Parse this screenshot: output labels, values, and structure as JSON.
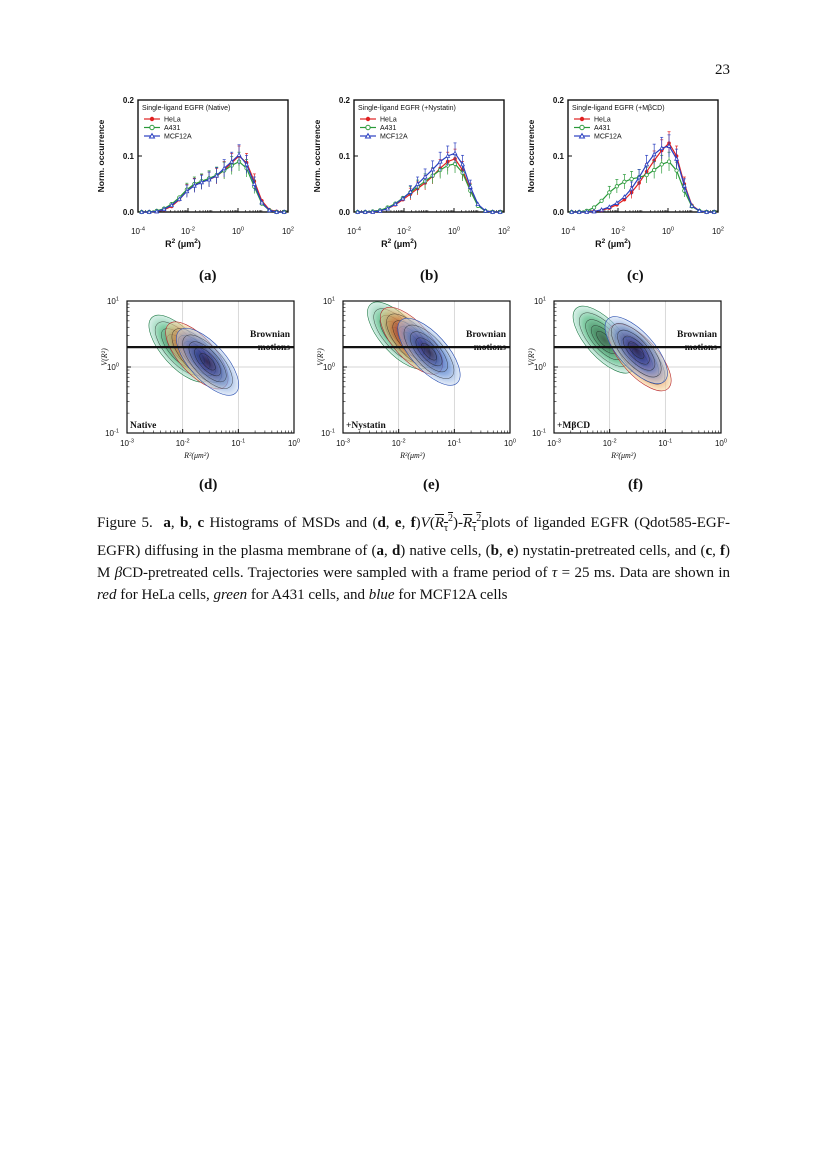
{
  "page_number": "23",
  "panel_labels": [
    "(a)",
    "(b)",
    "(c)",
    "(d)",
    "(e)",
    "(f)"
  ],
  "colors": {
    "HeLa": "#e02020",
    "A431": "#2a9a3a",
    "MCF12A": "#2a3fc0"
  },
  "histograms": [
    {
      "id": "a",
      "title": "Single-ligand EGFR (Native)"
    },
    {
      "id": "b",
      "title": "Single-ligand EGFR (+Nystatin)"
    },
    {
      "id": "c",
      "title": "Single-ligand EGFR (+MβCD)"
    }
  ],
  "histogram_axes": {
    "ylabel": "Norm. occurrence",
    "xlabel_main": "R",
    "xlabel_sup": "2",
    "xlabel_unit": "(μm",
    "xlabel_unit_sup": "2",
    "xlabel_close": ")",
    "yticks": [
      "0.0",
      "0.1",
      "0.2"
    ],
    "xticks": [
      {
        "base": "10",
        "exp": "-4"
      },
      {
        "base": "10",
        "exp": "-2"
      },
      {
        "base": "10",
        "exp": "0"
      },
      {
        "base": "10",
        "exp": "2"
      }
    ]
  },
  "legend": [
    "HeLa",
    "A431",
    "MCF12A"
  ],
  "contours": [
    {
      "id": "d",
      "condition": "Native"
    },
    {
      "id": "e",
      "condition": "+Nystatin"
    },
    {
      "id": "f",
      "condition": "+MβCD"
    }
  ],
  "contour_axes": {
    "ylabel": "V(R²)",
    "xlabel": "R²(μm²)",
    "brownian_line1": "Brownian",
    "brownian_line2": "motions",
    "yticks": [
      {
        "base": "10",
        "exp": "1"
      },
      {
        "base": "10",
        "exp": "0"
      },
      {
        "base": "10",
        "exp": "-1"
      }
    ],
    "xticks": [
      {
        "base": "10",
        "exp": "-3"
      },
      {
        "base": "10",
        "exp": "-2"
      },
      {
        "base": "10",
        "exp": "-1"
      },
      {
        "base": "10",
        "exp": "0"
      }
    ]
  },
  "chart_data": [
    {
      "type": "line",
      "panel": "a",
      "title": "Single-ligand EGFR (Native)",
      "xlabel": "R² (μm²)",
      "ylabel": "Norm. occurrence",
      "xscale": "log",
      "xlim": [
        0.0001,
        100
      ],
      "ylim": [
        0,
        0.2
      ],
      "x": [
        7e-05,
        0.00014,
        0.00028,
        0.00056,
        0.0011,
        0.0022,
        0.0045,
        0.009,
        0.018,
        0.035,
        0.07,
        0.14,
        0.28,
        0.56,
        1.1,
        2.2,
        4.5,
        9,
        18,
        35,
        70
      ],
      "series": [
        {
          "name": "HeLa",
          "values": [
            0,
            0,
            0,
            0.001,
            0.004,
            0.01,
            0.022,
            0.038,
            0.048,
            0.054,
            0.058,
            0.064,
            0.075,
            0.088,
            0.1,
            0.088,
            0.055,
            0.02,
            0.004,
            0.001,
            0
          ]
        },
        {
          "name": "A431",
          "values": [
            0,
            0,
            0,
            0.002,
            0.006,
            0.014,
            0.026,
            0.04,
            0.05,
            0.055,
            0.06,
            0.066,
            0.074,
            0.083,
            0.09,
            0.078,
            0.045,
            0.015,
            0.003,
            0,
            0
          ]
        },
        {
          "name": "MCF12A",
          "values": [
            0,
            0,
            0,
            0.001,
            0.005,
            0.012,
            0.023,
            0.037,
            0.047,
            0.053,
            0.058,
            0.065,
            0.078,
            0.09,
            0.102,
            0.085,
            0.05,
            0.017,
            0.003,
            0,
            0
          ]
        }
      ]
    },
    {
      "type": "line",
      "panel": "b",
      "title": "Single-ligand EGFR (+Nystatin)",
      "xlabel": "R² (μm²)",
      "ylabel": "Norm. occurrence",
      "xscale": "log",
      "xlim": [
        0.0001,
        100
      ],
      "ylim": [
        0,
        0.2
      ],
      "x": [
        7e-05,
        0.00014,
        0.00028,
        0.00056,
        0.0011,
        0.0022,
        0.0045,
        0.009,
        0.018,
        0.035,
        0.07,
        0.14,
        0.28,
        0.56,
        1.1,
        2.2,
        4.5,
        9,
        18,
        35,
        70
      ],
      "series": [
        {
          "name": "HeLa",
          "values": [
            0,
            0,
            0,
            0,
            0.002,
            0.006,
            0.013,
            0.022,
            0.032,
            0.042,
            0.052,
            0.064,
            0.078,
            0.09,
            0.095,
            0.075,
            0.04,
            0.012,
            0.002,
            0,
            0
          ]
        },
        {
          "name": "A431",
          "values": [
            0,
            0,
            0,
            0.001,
            0.003,
            0.008,
            0.015,
            0.025,
            0.035,
            0.045,
            0.055,
            0.065,
            0.075,
            0.083,
            0.086,
            0.07,
            0.038,
            0.011,
            0.002,
            0,
            0
          ]
        },
        {
          "name": "MCF12A",
          "values": [
            0,
            0,
            0,
            0,
            0.002,
            0.006,
            0.014,
            0.024,
            0.036,
            0.05,
            0.063,
            0.076,
            0.09,
            0.1,
            0.105,
            0.085,
            0.045,
            0.014,
            0.002,
            0,
            0
          ]
        }
      ]
    },
    {
      "type": "line",
      "panel": "c",
      "title": "Single-ligand EGFR (+MβCD)",
      "xlabel": "R² (μm²)",
      "ylabel": "Norm. occurrence",
      "xscale": "log",
      "xlim": [
        0.0001,
        100
      ],
      "ylim": [
        0,
        0.2
      ],
      "x": [
        7e-05,
        0.00014,
        0.00028,
        0.00056,
        0.0011,
        0.0022,
        0.0045,
        0.009,
        0.018,
        0.035,
        0.07,
        0.14,
        0.28,
        0.56,
        1.1,
        2.2,
        4.5,
        9,
        18,
        35,
        70
      ],
      "series": [
        {
          "name": "HeLa",
          "values": [
            0,
            0,
            0,
            0,
            0.001,
            0.003,
            0.007,
            0.013,
            0.022,
            0.035,
            0.052,
            0.072,
            0.092,
            0.11,
            0.123,
            0.1,
            0.05,
            0.012,
            0.002,
            0,
            0
          ]
        },
        {
          "name": "A431",
          "values": [
            0,
            0,
            0,
            0.002,
            0.008,
            0.02,
            0.035,
            0.046,
            0.054,
            0.059,
            0.062,
            0.066,
            0.075,
            0.085,
            0.09,
            0.074,
            0.038,
            0.01,
            0.002,
            0,
            0
          ]
        },
        {
          "name": "MCF12A",
          "values": [
            0,
            0,
            0,
            0,
            0.001,
            0.004,
            0.009,
            0.016,
            0.027,
            0.042,
            0.062,
            0.085,
            0.103,
            0.114,
            0.118,
            0.095,
            0.047,
            0.011,
            0.002,
            0,
            0
          ]
        }
      ]
    },
    {
      "type": "heatmap",
      "panel": "d",
      "annotation": "Native",
      "xlabel": "R²(μm²)",
      "ylabel": "V(R²)",
      "xscale": "log",
      "yscale": "log",
      "xlim": [
        0.001,
        1
      ],
      "ylim": [
        0.1,
        10
      ],
      "brownian_line_y": 2,
      "series": [
        {
          "name": "A431",
          "center": [
            0.009,
            1.9
          ]
        },
        {
          "name": "HeLa",
          "center": [
            0.018,
            1.5
          ]
        },
        {
          "name": "MCF12A",
          "center": [
            0.028,
            1.2
          ]
        }
      ]
    },
    {
      "type": "heatmap",
      "panel": "e",
      "annotation": "+Nystatin",
      "xlabel": "R²(μm²)",
      "ylabel": "V(R²)",
      "xscale": "log",
      "yscale": "log",
      "xlim": [
        0.001,
        1
      ],
      "ylim": [
        0.1,
        10
      ],
      "brownian_line_y": 2,
      "series": [
        {
          "name": "A431",
          "center": [
            0.01,
            3.0
          ]
        },
        {
          "name": "HeLa",
          "center": [
            0.017,
            2.5
          ]
        },
        {
          "name": "MCF12A",
          "center": [
            0.035,
            1.7
          ]
        }
      ]
    },
    {
      "type": "heatmap",
      "panel": "f",
      "annotation": "+MβCD",
      "xlabel": "R²(μm²)",
      "ylabel": "V(R²)",
      "xscale": "log",
      "yscale": "log",
      "xlim": [
        0.001,
        1
      ],
      "ylim": [
        0.1,
        10
      ],
      "brownian_line_y": 2,
      "series": [
        {
          "name": "A431",
          "center": [
            0.008,
            2.6
          ]
        },
        {
          "name": "HeLa",
          "center": [
            0.035,
            1.4
          ]
        },
        {
          "name": "MCF12A",
          "center": [
            0.03,
            1.8
          ]
        }
      ]
    }
  ],
  "caption": {
    "lead": "Figure 5.",
    "a": "a",
    "sep1": ", ",
    "b": "b",
    "sep2": ", ",
    "c": "c",
    "t1": " Histograms of MSDs and (",
    "d": "d",
    "sep3": ", ",
    "e": "e",
    "sep4": ", ",
    "f": "f",
    "t2": ")",
    "formula_V": "V",
    "formula_open": "(",
    "formula_R": "R",
    "formula_sub": "τ",
    "formula_sup": "2",
    "formula_close": ")",
    "formula_dash": "-",
    "t3": "plots of liganded EGFR (Qdot585-EGF-EGFR) diffusing in the plasma membrane of (",
    "a2": "a",
    "sep5": ", ",
    "d2": "d",
    "t4": ") native cells, (",
    "b2": "b",
    "sep6": ", ",
    "e2": "e",
    "t5": ") nystatin-pretreated cells, and (",
    "c2": "c",
    "sep7": ", ",
    "f2": "f",
    "t6": ") M ",
    "beta": "β",
    "t7": "CD-pretreated cells. Trajectories were sampled with a frame period of ",
    "tau": "τ",
    "t8": " = 25 ms. Data are shown in ",
    "red": "red",
    "t9": " for HeLa cells, ",
    "green": "green",
    "t10": " for A431 cells, and ",
    "blue": "blue",
    "t11": " for MCF12A cells"
  }
}
